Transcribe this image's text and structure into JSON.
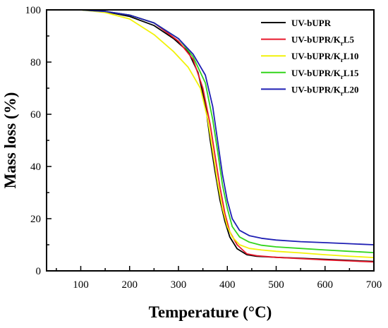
{
  "chart_data": {
    "type": "line",
    "xlabel": "Temperature (°C)",
    "ylabel": "Mass loss (%)",
    "xlim": [
      30,
      700
    ],
    "ylim": [
      0,
      100
    ],
    "x_ticks": [
      100,
      200,
      300,
      400,
      500,
      600,
      700
    ],
    "y_ticks": [
      0,
      20,
      40,
      60,
      80,
      100
    ],
    "grid": false,
    "legend_position": "top-right",
    "series": [
      {
        "name": "UV-bUPR",
        "name_parts": {
          "base": "UV-bUPR",
          "sub": "",
          "suffix": ""
        },
        "color": "#000000",
        "x": [
          30,
          100,
          150,
          200,
          250,
          290,
          320,
          340,
          355,
          365,
          375,
          385,
          395,
          405,
          420,
          440,
          460,
          500,
          550,
          600,
          650,
          700
        ],
        "y": [
          100,
          100,
          99.3,
          97.5,
          94,
          89,
          84,
          76,
          64,
          50,
          38,
          27,
          19,
          13,
          8.5,
          6.2,
          5.6,
          5.2,
          4.8,
          4.4,
          4.0,
          3.6
        ]
      },
      {
        "name": "UV-bUPR/KrL5",
        "name_parts": {
          "base": "UV-bUPR/K",
          "sub": "r",
          "suffix": "L5"
        },
        "color": "#e8192c",
        "x": [
          30,
          100,
          150,
          200,
          250,
          300,
          330,
          350,
          365,
          375,
          385,
          395,
          405,
          420,
          440,
          460,
          500,
          550,
          600,
          650,
          700
        ],
        "y": [
          100,
          100,
          99.4,
          98,
          95,
          88,
          81,
          70,
          56,
          44,
          32,
          22,
          15,
          10,
          6.5,
          5.8,
          5.2,
          4.7,
          4.2,
          3.8,
          3.4
        ]
      },
      {
        "name": "UV-bUPR/KrL10",
        "name_parts": {
          "base": "UV-bUPR/K",
          "sub": "r",
          "suffix": "L10"
        },
        "color": "#f2f20a",
        "x": [
          30,
          100,
          150,
          200,
          250,
          290,
          320,
          345,
          360,
          370,
          380,
          390,
          400,
          410,
          425,
          445,
          470,
          500,
          550,
          600,
          650,
          700
        ],
        "y": [
          100,
          100,
          99,
          96.5,
          90.5,
          84,
          78,
          70,
          58,
          46,
          34,
          24,
          17,
          13,
          10,
          8.6,
          8,
          7.5,
          6.9,
          6.2,
          5.6,
          5.1
        ]
      },
      {
        "name": "UV-bUPR/KrL15",
        "name_parts": {
          "base": "UV-bUPR/K",
          "sub": "r",
          "suffix": "L15"
        },
        "color": "#33d51c",
        "x": [
          30,
          100,
          150,
          200,
          250,
          300,
          330,
          355,
          370,
          380,
          390,
          400,
          410,
          425,
          445,
          470,
          500,
          550,
          600,
          650,
          700
        ],
        "y": [
          100,
          100,
          99.4,
          98,
          95,
          89,
          82,
          72,
          58,
          46,
          33,
          24,
          17,
          13,
          11,
          9.8,
          9.2,
          8.6,
          8,
          7.5,
          7
        ]
      },
      {
        "name": "UV-bUPR/KrL20",
        "name_parts": {
          "base": "UV-bUPR/K",
          "sub": "r",
          "suffix": "L20"
        },
        "color": "#1f1fb4",
        "x": [
          30,
          100,
          150,
          200,
          250,
          300,
          330,
          355,
          370,
          380,
          390,
          400,
          410,
          425,
          445,
          470,
          500,
          550,
          600,
          650,
          700
        ],
        "y": [
          100,
          100,
          99.4,
          98,
          95,
          89,
          83,
          75,
          63,
          50,
          37,
          27,
          20,
          15.5,
          13.5,
          12.5,
          11.8,
          11.2,
          10.8,
          10.4,
          10
        ]
      }
    ]
  }
}
